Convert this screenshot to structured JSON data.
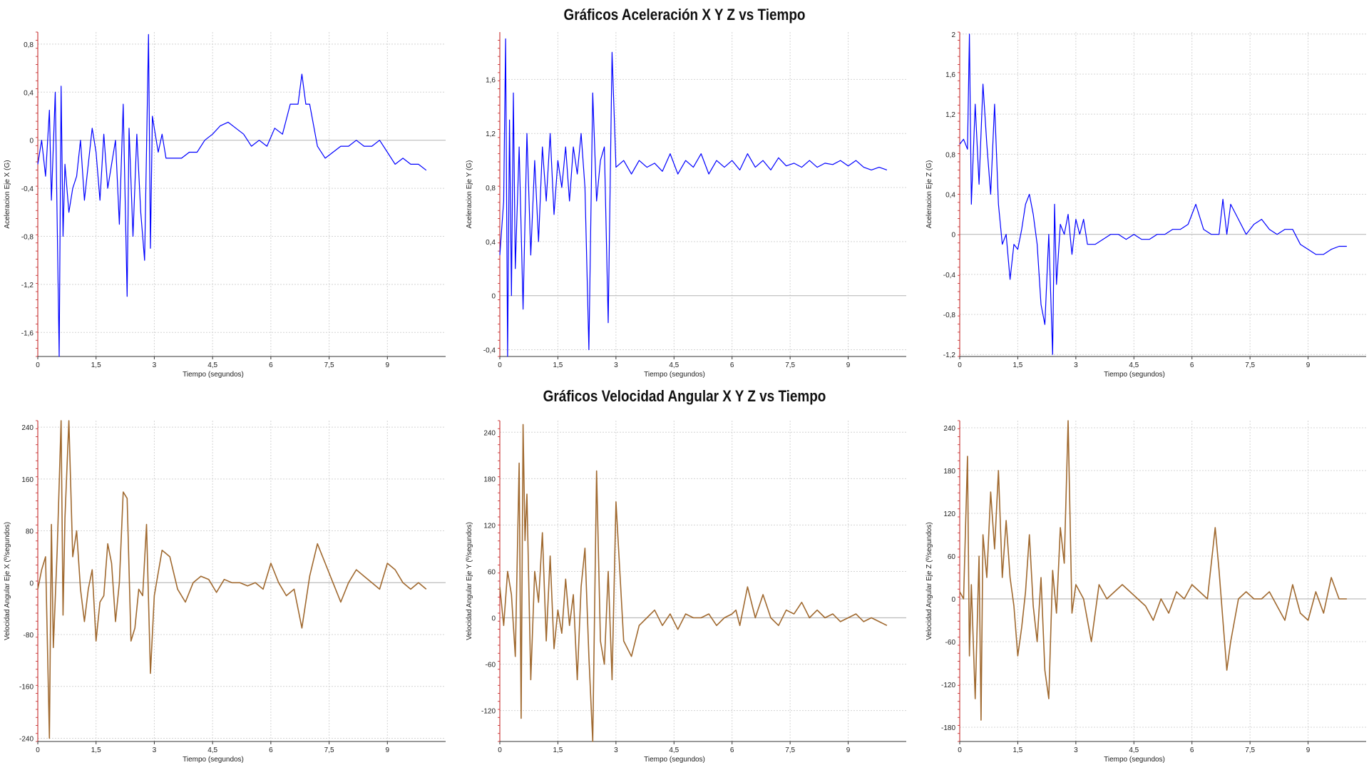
{
  "titles": {
    "acceleration": "Gráficos Aceleración X Y Z vs Tiempo",
    "angular_velocity": "Gráficos Velocidad Angular X Y Z vs Tiempo"
  },
  "colors": {
    "acceleration_series": "#0000ff",
    "velocity_series": "#a0692f",
    "grid": "#d4d4d4",
    "zero_line": "#bdbdbd",
    "left_axis": "#c21a1a"
  },
  "chart_data": [
    {
      "type": "line",
      "xlabel": "Tiempo (segundos)",
      "ylabel": "Aceleracion Eje X (G)",
      "xlim": [
        0,
        10.5
      ],
      "ylim": [
        -1.8,
        0.9
      ],
      "xticks": [
        "0",
        "1,5",
        "3",
        "4,5",
        "6",
        "7,5",
        "9"
      ],
      "yticks": [
        "0,8",
        "0,4",
        "0",
        "-0,4",
        "-0,8",
        "-1,2",
        "-1,6"
      ],
      "series": [
        {
          "x": [
            0,
            0.1,
            0.2,
            0.3,
            0.35,
            0.45,
            0.55,
            0.6,
            0.65,
            0.7,
            0.8,
            0.9,
            1.0,
            1.1,
            1.2,
            1.3,
            1.4,
            1.5,
            1.6,
            1.7,
            1.8,
            1.9,
            2.0,
            2.1,
            2.2,
            2.3,
            2.35,
            2.45,
            2.55,
            2.65,
            2.75,
            2.85,
            2.9,
            2.95,
            3.0,
            3.1,
            3.2,
            3.3,
            3.5,
            3.7,
            3.9,
            4.1,
            4.3,
            4.5,
            4.7,
            4.9,
            5.1,
            5.3,
            5.5,
            5.7,
            5.9,
            6.1,
            6.3,
            6.5,
            6.7,
            6.8,
            6.9,
            7.0,
            7.2,
            7.4,
            7.6,
            7.8,
            8.0,
            8.2,
            8.4,
            8.6,
            8.8,
            9.0,
            9.2,
            9.4,
            9.6,
            9.8,
            10.0
          ],
          "y": [
            -0.2,
            0.0,
            -0.3,
            0.25,
            -0.5,
            0.4,
            -1.8,
            0.45,
            -0.8,
            -0.2,
            -0.6,
            -0.4,
            -0.3,
            0.0,
            -0.5,
            -0.2,
            0.1,
            -0.1,
            -0.5,
            0.05,
            -0.4,
            -0.2,
            0.0,
            -0.7,
            0.3,
            -1.3,
            0.1,
            -0.8,
            0.05,
            -0.6,
            -1.0,
            0.88,
            -0.9,
            0.2,
            0.1,
            -0.1,
            0.05,
            -0.15,
            -0.15,
            -0.15,
            -0.1,
            -0.1,
            0.0,
            0.05,
            0.12,
            0.15,
            0.1,
            0.05,
            -0.05,
            0.0,
            -0.05,
            0.1,
            0.05,
            0.3,
            0.3,
            0.55,
            0.3,
            0.3,
            -0.05,
            -0.15,
            -0.1,
            -0.05,
            -0.05,
            0.0,
            -0.05,
            -0.05,
            0.0,
            -0.1,
            -0.2,
            -0.15,
            -0.2,
            -0.2,
            -0.25
          ]
        }
      ]
    },
    {
      "type": "line",
      "xlabel": "Tiempo (segundos)",
      "ylabel": "Aceleracion Eje Y (G)",
      "xlim": [
        0,
        10.5
      ],
      "ylim": [
        -0.45,
        1.95
      ],
      "xticks": [
        "0",
        "1,5",
        "3",
        "4,5",
        "6",
        "7,5",
        "9"
      ],
      "yticks": [
        "1,6",
        "1,2",
        "0,8",
        "0,4",
        "0",
        "-0,4"
      ],
      "series": [
        {
          "x": [
            0,
            0.1,
            0.15,
            0.2,
            0.25,
            0.3,
            0.35,
            0.4,
            0.5,
            0.6,
            0.7,
            0.8,
            0.9,
            1.0,
            1.1,
            1.2,
            1.3,
            1.4,
            1.5,
            1.6,
            1.7,
            1.8,
            1.9,
            2.0,
            2.1,
            2.2,
            2.3,
            2.4,
            2.5,
            2.6,
            2.7,
            2.8,
            2.9,
            3.0,
            3.2,
            3.4,
            3.6,
            3.8,
            4.0,
            4.2,
            4.4,
            4.6,
            4.8,
            5.0,
            5.2,
            5.4,
            5.6,
            5.8,
            6.0,
            6.2,
            6.4,
            6.6,
            6.8,
            7.0,
            7.2,
            7.4,
            7.6,
            7.8,
            8.0,
            8.2,
            8.4,
            8.6,
            8.8,
            9.0,
            9.2,
            9.4,
            9.6,
            9.8,
            10.0
          ],
          "y": [
            0.3,
            0.7,
            1.9,
            -0.45,
            1.3,
            0.0,
            1.5,
            0.2,
            1.1,
            -0.1,
            1.2,
            0.3,
            1.0,
            0.4,
            1.1,
            0.7,
            1.2,
            0.6,
            1.0,
            0.8,
            1.1,
            0.7,
            1.1,
            0.9,
            1.2,
            0.8,
            -0.4,
            1.5,
            0.7,
            1.0,
            1.1,
            -0.2,
            1.8,
            0.95,
            1.0,
            0.9,
            1.0,
            0.95,
            0.98,
            0.92,
            1.05,
            0.9,
            1.0,
            0.95,
            1.05,
            0.9,
            1.0,
            0.95,
            1.0,
            0.93,
            1.05,
            0.95,
            1.0,
            0.93,
            1.02,
            0.96,
            0.98,
            0.95,
            1.0,
            0.95,
            0.98,
            0.97,
            1.0,
            0.96,
            1.0,
            0.95,
            0.93,
            0.95,
            0.93
          ]
        }
      ]
    },
    {
      "type": "line",
      "xlabel": "Tiempo (segundos)",
      "ylabel": "Aceleracion Eje Z (G)",
      "xlim": [
        0,
        10.5
      ],
      "ylim": [
        -1.22,
        2.02
      ],
      "xticks": [
        "0",
        "1,5",
        "3",
        "4,5",
        "6",
        "7,5",
        "9"
      ],
      "yticks": [
        "2",
        "1,6",
        "1,2",
        "0,8",
        "0,4",
        "0",
        "-0,4",
        "-0,8",
        "-1,2"
      ],
      "series": [
        {
          "x": [
            0,
            0.1,
            0.2,
            0.25,
            0.3,
            0.4,
            0.5,
            0.6,
            0.7,
            0.8,
            0.9,
            1.0,
            1.1,
            1.2,
            1.3,
            1.4,
            1.5,
            1.6,
            1.7,
            1.8,
            1.9,
            2.0,
            2.1,
            2.2,
            2.3,
            2.4,
            2.45,
            2.5,
            2.6,
            2.7,
            2.8,
            2.9,
            3.0,
            3.1,
            3.2,
            3.3,
            3.5,
            3.7,
            3.9,
            4.1,
            4.3,
            4.5,
            4.7,
            4.9,
            5.1,
            5.3,
            5.5,
            5.7,
            5.9,
            6.1,
            6.3,
            6.5,
            6.7,
            6.8,
            6.9,
            7.0,
            7.2,
            7.4,
            7.6,
            7.8,
            8.0,
            8.2,
            8.4,
            8.6,
            8.8,
            9.0,
            9.2,
            9.4,
            9.6,
            9.8,
            10.0
          ],
          "y": [
            0.9,
            0.95,
            0.85,
            2.0,
            0.3,
            1.3,
            0.5,
            1.5,
            0.9,
            0.4,
            1.3,
            0.3,
            -0.1,
            0.0,
            -0.45,
            -0.1,
            -0.15,
            0.05,
            0.3,
            0.4,
            0.2,
            -0.1,
            -0.7,
            -0.9,
            0.0,
            -1.2,
            0.3,
            -0.5,
            0.1,
            0.0,
            0.2,
            -0.2,
            0.15,
            0.0,
            0.15,
            -0.1,
            -0.1,
            -0.05,
            0.0,
            0.0,
            -0.05,
            0.0,
            -0.05,
            -0.05,
            0.0,
            0.0,
            0.05,
            0.05,
            0.1,
            0.3,
            0.05,
            0.0,
            0.0,
            0.35,
            0.0,
            0.3,
            0.15,
            0.0,
            0.1,
            0.15,
            0.05,
            0.0,
            0.05,
            0.05,
            -0.1,
            -0.15,
            -0.2,
            -0.2,
            -0.15,
            -0.12,
            -0.12
          ]
        }
      ]
    },
    {
      "type": "line",
      "xlabel": "Tiempo (segundos)",
      "ylabel": "Velocidad Angular Eje X (º/segundos)",
      "xlim": [
        0,
        10.5
      ],
      "ylim": [
        -245,
        250
      ],
      "xticks": [
        "0",
        "1,5",
        "3",
        "4,5",
        "6",
        "7,5",
        "9"
      ],
      "yticks": [
        "240",
        "160",
        "80",
        "0",
        "-80",
        "-160",
        "-240"
      ],
      "series": [
        {
          "x": [
            0,
            0.1,
            0.2,
            0.3,
            0.35,
            0.4,
            0.5,
            0.6,
            0.65,
            0.7,
            0.8,
            0.9,
            1.0,
            1.1,
            1.2,
            1.3,
            1.4,
            1.5,
            1.6,
            1.7,
            1.8,
            1.9,
            2.0,
            2.1,
            2.2,
            2.3,
            2.4,
            2.5,
            2.6,
            2.7,
            2.8,
            2.9,
            3.0,
            3.2,
            3.4,
            3.6,
            3.8,
            4.0,
            4.2,
            4.4,
            4.6,
            4.8,
            5.0,
            5.2,
            5.4,
            5.6,
            5.8,
            6.0,
            6.2,
            6.4,
            6.6,
            6.8,
            7.0,
            7.2,
            7.4,
            7.6,
            7.8,
            8.0,
            8.2,
            8.4,
            8.6,
            8.8,
            9.0,
            9.2,
            9.4,
            9.6,
            9.8,
            10.0
          ],
          "y": [
            -10,
            20,
            40,
            -240,
            90,
            -100,
            50,
            250,
            -50,
            100,
            250,
            40,
            80,
            -10,
            -60,
            -10,
            20,
            -90,
            -30,
            -20,
            60,
            30,
            -60,
            0,
            140,
            130,
            -90,
            -70,
            -10,
            -20,
            90,
            -140,
            -20,
            50,
            40,
            -10,
            -30,
            0,
            10,
            5,
            -15,
            5,
            0,
            0,
            -5,
            0,
            -10,
            30,
            0,
            -20,
            -10,
            -70,
            10,
            60,
            30,
            0,
            -30,
            0,
            20,
            10,
            0,
            -10,
            30,
            20,
            0,
            -10,
            0,
            -10
          ]
        }
      ]
    },
    {
      "type": "line",
      "xlabel": "Tiempo (segundos)",
      "ylabel": "Velocidad Angular Eje Y (º/segundos)",
      "xlim": [
        0,
        10.5
      ],
      "ylim": [
        -160,
        255
      ],
      "xticks": [
        "0",
        "1,5",
        "3",
        "4,5",
        "6",
        "7,5",
        "9"
      ],
      "yticks": [
        "240",
        "180",
        "120",
        "60",
        "0",
        "-60",
        "-120"
      ],
      "series": [
        {
          "x": [
            0,
            0.1,
            0.2,
            0.3,
            0.4,
            0.5,
            0.55,
            0.6,
            0.65,
            0.7,
            0.8,
            0.9,
            1.0,
            1.1,
            1.2,
            1.3,
            1.4,
            1.5,
            1.6,
            1.7,
            1.8,
            1.9,
            2.0,
            2.1,
            2.2,
            2.3,
            2.4,
            2.5,
            2.6,
            2.7,
            2.8,
            2.9,
            3.0,
            3.2,
            3.4,
            3.6,
            3.8,
            4.0,
            4.2,
            4.4,
            4.6,
            4.8,
            5.0,
            5.2,
            5.4,
            5.6,
            5.8,
            6.0,
            6.1,
            6.2,
            6.4,
            6.6,
            6.8,
            7.0,
            7.2,
            7.4,
            7.6,
            7.8,
            8.0,
            8.2,
            8.4,
            8.6,
            8.8,
            9.0,
            9.2,
            9.4,
            9.6,
            9.8,
            10.0
          ],
          "y": [
            40,
            -10,
            60,
            30,
            -50,
            200,
            -130,
            250,
            100,
            160,
            -80,
            60,
            20,
            110,
            -30,
            80,
            -40,
            10,
            -20,
            50,
            -10,
            30,
            -80,
            40,
            90,
            -50,
            -160,
            190,
            -30,
            -60,
            60,
            -80,
            150,
            -30,
            -50,
            -10,
            0,
            10,
            -10,
            5,
            -15,
            5,
            0,
            0,
            5,
            -10,
            0,
            5,
            10,
            -10,
            40,
            0,
            30,
            0,
            -10,
            10,
            5,
            20,
            0,
            10,
            0,
            5,
            -5,
            0,
            5,
            -5,
            0,
            -5,
            -10
          ]
        }
      ]
    },
    {
      "type": "line",
      "xlabel": "Tiempo (segundos)",
      "ylabel": "Velocidad Angular Eje Z (º/segundos)",
      "xlim": [
        0,
        10.5
      ],
      "ylim": [
        -200,
        250
      ],
      "xticks": [
        "0",
        "1,5",
        "3",
        "4,5",
        "6",
        "7,5",
        "9"
      ],
      "yticks": [
        "240",
        "180",
        "120",
        "60",
        "0",
        "-60",
        "-120",
        "-180"
      ],
      "series": [
        {
          "x": [
            0,
            0.1,
            0.2,
            0.25,
            0.3,
            0.4,
            0.5,
            0.55,
            0.6,
            0.7,
            0.8,
            0.9,
            1.0,
            1.1,
            1.2,
            1.3,
            1.4,
            1.5,
            1.6,
            1.7,
            1.8,
            1.9,
            2.0,
            2.1,
            2.2,
            2.3,
            2.4,
            2.5,
            2.6,
            2.7,
            2.8,
            2.9,
            3.0,
            3.2,
            3.4,
            3.6,
            3.8,
            4.0,
            4.2,
            4.4,
            4.6,
            4.8,
            5.0,
            5.2,
            5.4,
            5.6,
            5.8,
            6.0,
            6.2,
            6.4,
            6.6,
            6.7,
            6.8,
            6.9,
            7.0,
            7.2,
            7.4,
            7.6,
            7.8,
            8.0,
            8.2,
            8.4,
            8.6,
            8.8,
            9.0,
            9.2,
            9.4,
            9.6,
            9.8,
            10.0
          ],
          "y": [
            10,
            0,
            200,
            -80,
            20,
            -140,
            60,
            -170,
            90,
            30,
            150,
            70,
            180,
            30,
            110,
            30,
            -10,
            -80,
            -40,
            10,
            90,
            -10,
            -60,
            30,
            -100,
            -140,
            40,
            -20,
            100,
            50,
            250,
            -20,
            20,
            0,
            -60,
            20,
            0,
            10,
            20,
            10,
            0,
            -10,
            -30,
            0,
            -20,
            10,
            0,
            20,
            10,
            0,
            100,
            40,
            -30,
            -100,
            -60,
            0,
            10,
            0,
            0,
            10,
            -10,
            -30,
            20,
            -20,
            -30,
            10,
            -20,
            30,
            0,
            0
          ]
        }
      ]
    }
  ]
}
